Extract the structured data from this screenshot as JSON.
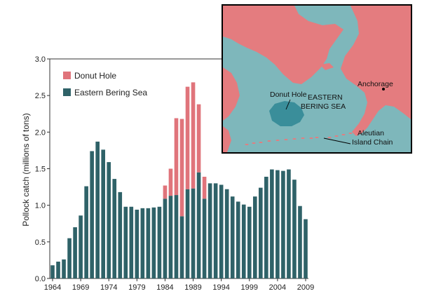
{
  "colors": {
    "donut_hole": "#e0747b",
    "eastern_bering_sea": "#2f6268",
    "sea": "#7eb7bb",
    "land": "#e47c7f",
    "donut_region": "#3a8e9a"
  },
  "map": {
    "labels": {
      "anchorage": "Anchorage",
      "donut_hole": "Donut Hole",
      "eastern_line1": "EASTERN",
      "eastern_line2": "BERING SEA",
      "aleutian_line1": "Aleutian",
      "aleutian_line2": "Island Chain"
    }
  },
  "chart_data": {
    "type": "bar",
    "stacked": true,
    "title": "",
    "xlabel": "",
    "ylabel": "Pollock catch (millions of tons)",
    "ylim": [
      0,
      3.0
    ],
    "yticks": [
      "0.0",
      "0.5",
      "1.0",
      "1.5",
      "2.0",
      "2.5",
      "3.0"
    ],
    "xticks": [
      "1964",
      "1969",
      "1974",
      "1979",
      "1984",
      "1989",
      "1994",
      "1999",
      "2004",
      "2009"
    ],
    "legend": [
      "Donut Hole",
      "Eastern Bering Sea"
    ],
    "legend_position": "top-left",
    "categories": [
      1964,
      1965,
      1966,
      1967,
      1968,
      1969,
      1970,
      1971,
      1972,
      1973,
      1974,
      1975,
      1976,
      1977,
      1978,
      1979,
      1980,
      1981,
      1982,
      1983,
      1984,
      1985,
      1986,
      1987,
      1988,
      1989,
      1990,
      1991,
      1992,
      1993,
      1994,
      1995,
      1996,
      1997,
      1998,
      1999,
      2000,
      2001,
      2002,
      2003,
      2004,
      2005,
      2006,
      2007,
      2008,
      2009
    ],
    "series": [
      {
        "name": "Eastern Bering Sea",
        "values": [
          0.18,
          0.23,
          0.26,
          0.55,
          0.7,
          0.86,
          1.26,
          1.74,
          1.87,
          1.76,
          1.59,
          1.36,
          1.18,
          0.98,
          0.98,
          0.94,
          0.96,
          0.96,
          0.97,
          0.98,
          1.09,
          1.13,
          1.14,
          0.85,
          1.22,
          1.23,
          1.45,
          1.09,
          1.3,
          1.3,
          1.28,
          1.22,
          1.12,
          1.05,
          1.01,
          0.98,
          1.12,
          1.24,
          1.39,
          1.49,
          1.48,
          1.47,
          1.49,
          1.35,
          0.99,
          0.81
        ]
      },
      {
        "name": "Donut Hole",
        "values": [
          0,
          0,
          0,
          0,
          0,
          0,
          0,
          0,
          0,
          0,
          0,
          0,
          0,
          0,
          0,
          0,
          0,
          0,
          0,
          0,
          0.18,
          0.37,
          1.05,
          1.33,
          1.4,
          1.45,
          0.93,
          0.3,
          0,
          0,
          0,
          0,
          0,
          0,
          0,
          0,
          0,
          0,
          0,
          0,
          0,
          0,
          0,
          0,
          0,
          0
        ]
      }
    ]
  }
}
